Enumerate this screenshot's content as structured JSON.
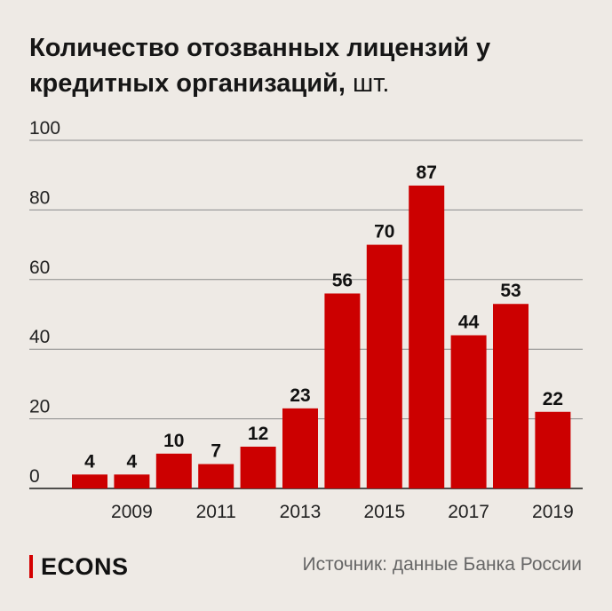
{
  "header": {
    "title": "Количество отозванных лицензий у кредитных организаций,",
    "unit": "шт."
  },
  "footer": {
    "logo": "ECONS",
    "source": "Источник: данные Банка России"
  },
  "colors": {
    "bar": "#CC0000",
    "background": "#EEEAE5",
    "grid": "#8a8a8a",
    "accent": "#D40000"
  },
  "chart_data": {
    "type": "bar",
    "categories": [
      "2008",
      "2009",
      "2010",
      "2011",
      "2012",
      "2013",
      "2014",
      "2015",
      "2016",
      "2017",
      "2018",
      "2019"
    ],
    "values": [
      4,
      4,
      10,
      7,
      12,
      23,
      56,
      70,
      87,
      44,
      53,
      22
    ],
    "x_tick_labels": [
      "2009",
      "2011",
      "2013",
      "2015",
      "2017",
      "2019"
    ],
    "y_ticks": [
      0,
      20,
      40,
      60,
      80,
      100
    ],
    "ylim": [
      0,
      100
    ],
    "grid": true,
    "data_labels": true
  }
}
